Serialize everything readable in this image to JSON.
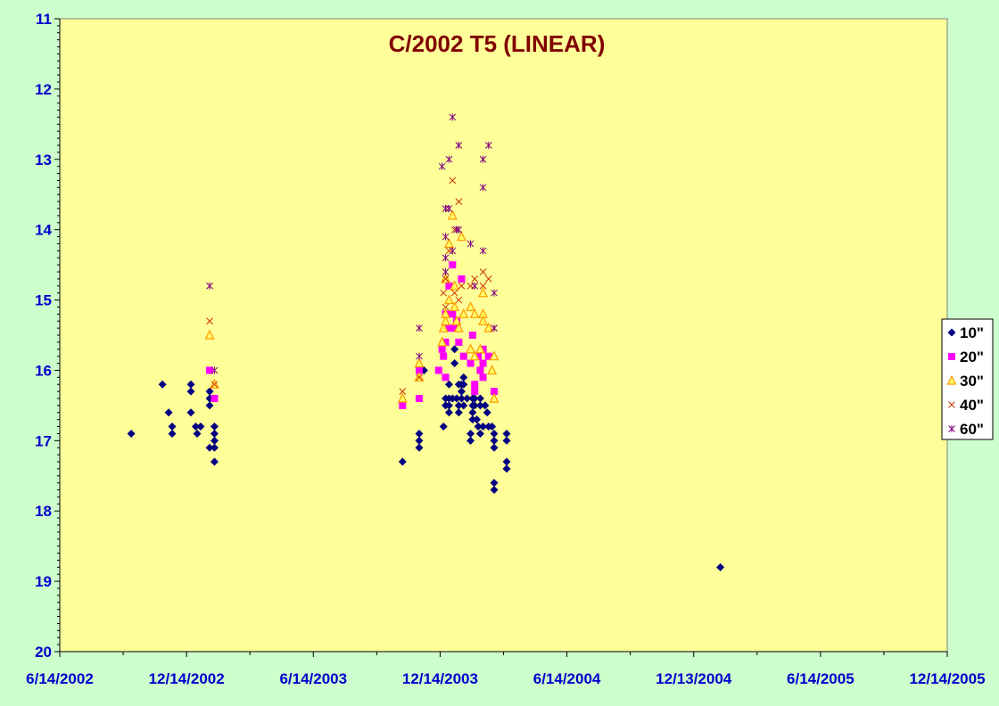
{
  "chart_data": {
    "type": "scatter",
    "title": "C/2002 T5 (LINEAR)",
    "xlabel": "",
    "ylabel": "",
    "x_axis": {
      "type": "date",
      "range": [
        "2002-06-14",
        "2005-12-14"
      ],
      "tick_labels": [
        "6/14/2002",
        "12/14/2002",
        "6/14/2003",
        "12/14/2003",
        "6/14/2004",
        "12/13/2004",
        "6/14/2005",
        "12/14/2005"
      ]
    },
    "y_axis": {
      "reversed": true,
      "range": [
        11,
        20
      ],
      "tick_labels": [
        "11",
        "12",
        "13",
        "14",
        "15",
        "16",
        "17",
        "18",
        "19",
        "20"
      ]
    },
    "grid": false,
    "legend_position": "right",
    "colors": {
      "plot_bg": "#ffff99",
      "page_bg": "#ccffcc",
      "title": "#800000",
      "ticks": "#0000cc"
    },
    "series": [
      {
        "name": "10\"",
        "marker": "diamond",
        "color": "#000080",
        "points": [
          [
            "2002-09-25",
            16.9
          ],
          [
            "2002-11-09",
            16.2
          ],
          [
            "2002-11-18",
            16.6
          ],
          [
            "2002-11-23",
            16.8
          ],
          [
            "2002-11-23",
            16.9
          ],
          [
            "2002-12-20",
            16.2
          ],
          [
            "2002-12-20",
            16.3
          ],
          [
            "2002-12-20",
            16.6
          ],
          [
            "2002-12-27",
            16.8
          ],
          [
            "2002-12-29",
            16.9
          ],
          [
            "2003-01-03",
            16.8
          ],
          [
            "2003-01-16",
            16.3
          ],
          [
            "2003-01-16",
            16.4
          ],
          [
            "2003-01-16",
            16.5
          ],
          [
            "2003-01-16",
            17.1
          ],
          [
            "2003-01-23",
            16.8
          ],
          [
            "2003-01-23",
            16.9
          ],
          [
            "2003-01-23",
            17.0
          ],
          [
            "2003-01-23",
            17.1
          ],
          [
            "2003-01-23",
            17.3
          ],
          [
            "2003-10-21",
            17.3
          ],
          [
            "2003-11-14",
            16.9
          ],
          [
            "2003-11-14",
            17.0
          ],
          [
            "2003-11-14",
            17.1
          ],
          [
            "2003-11-21",
            16.0
          ],
          [
            "2003-12-19",
            16.8
          ],
          [
            "2003-12-22",
            16.4
          ],
          [
            "2003-12-22",
            16.5
          ],
          [
            "2003-12-27",
            16.2
          ],
          [
            "2003-12-27",
            16.4
          ],
          [
            "2003-12-27",
            16.5
          ],
          [
            "2003-12-27",
            16.6
          ],
          [
            "2004-01-01",
            16.4
          ],
          [
            "2004-01-04",
            15.7
          ],
          [
            "2004-01-04",
            15.9
          ],
          [
            "2004-01-07",
            16.4
          ],
          [
            "2004-01-10",
            16.2
          ],
          [
            "2004-01-10",
            16.5
          ],
          [
            "2004-01-10",
            16.6
          ],
          [
            "2004-01-14",
            16.2
          ],
          [
            "2004-01-14",
            16.3
          ],
          [
            "2004-01-14",
            16.4
          ],
          [
            "2004-01-17",
            16.1
          ],
          [
            "2004-01-17",
            16.2
          ],
          [
            "2004-01-17",
            16.5
          ],
          [
            "2004-01-22",
            16.4
          ],
          [
            "2004-01-27",
            16.9
          ],
          [
            "2004-01-27",
            17.0
          ],
          [
            "2004-01-30",
            16.4
          ],
          [
            "2004-01-30",
            16.5
          ],
          [
            "2004-01-30",
            16.6
          ],
          [
            "2004-01-30",
            16.7
          ],
          [
            "2004-02-02",
            16.4
          ],
          [
            "2004-02-02",
            16.5
          ],
          [
            "2004-02-05",
            16.7
          ],
          [
            "2004-02-07",
            16.8
          ],
          [
            "2004-02-10",
            16.4
          ],
          [
            "2004-02-10",
            16.5
          ],
          [
            "2004-02-10",
            16.9
          ],
          [
            "2004-02-14",
            16.8
          ],
          [
            "2004-02-17",
            16.5
          ],
          [
            "2004-02-20",
            16.6
          ],
          [
            "2004-02-22",
            16.8
          ],
          [
            "2004-02-27",
            16.8
          ],
          [
            "2004-03-01",
            16.9
          ],
          [
            "2004-03-01",
            17.0
          ],
          [
            "2004-03-01",
            17.1
          ],
          [
            "2004-03-01",
            17.6
          ],
          [
            "2004-03-01",
            17.7
          ],
          [
            "2004-03-19",
            16.9
          ],
          [
            "2004-03-19",
            17.0
          ],
          [
            "2004-03-19",
            17.3
          ],
          [
            "2004-03-19",
            17.4
          ],
          [
            "2005-01-21",
            18.8
          ]
        ]
      },
      {
        "name": "20\"",
        "marker": "square",
        "color": "#ff00ff",
        "points": [
          [
            "2003-01-16",
            16.0
          ],
          [
            "2003-01-23",
            16.4
          ],
          [
            "2003-10-21",
            16.5
          ],
          [
            "2003-11-14",
            16.0
          ],
          [
            "2003-11-14",
            16.4
          ],
          [
            "2003-12-12",
            16.0
          ],
          [
            "2003-12-17",
            15.7
          ],
          [
            "2003-12-19",
            15.8
          ],
          [
            "2003-12-22",
            15.2
          ],
          [
            "2003-12-22",
            15.6
          ],
          [
            "2003-12-22",
            16.1
          ],
          [
            "2003-12-27",
            14.8
          ],
          [
            "2003-12-27",
            15.4
          ],
          [
            "2004-01-01",
            14.5
          ],
          [
            "2004-01-01",
            15.2
          ],
          [
            "2004-01-04",
            15.4
          ],
          [
            "2004-01-07",
            15.3
          ],
          [
            "2004-01-10",
            15.6
          ],
          [
            "2004-01-14",
            14.7
          ],
          [
            "2004-01-17",
            15.8
          ],
          [
            "2004-01-27",
            15.9
          ],
          [
            "2004-01-30",
            15.5
          ],
          [
            "2004-02-02",
            16.2
          ],
          [
            "2004-02-02",
            16.3
          ],
          [
            "2004-02-07",
            15.8
          ],
          [
            "2004-02-10",
            16.0
          ],
          [
            "2004-02-14",
            15.7
          ],
          [
            "2004-02-14",
            15.9
          ],
          [
            "2004-02-14",
            16.1
          ],
          [
            "2004-02-22",
            15.8
          ],
          [
            "2004-03-01",
            16.3
          ]
        ]
      },
      {
        "name": "30\"",
        "marker": "triangle",
        "color": "#ff9900",
        "points": [
          [
            "2003-01-16",
            15.5
          ],
          [
            "2003-01-23",
            16.2
          ],
          [
            "2003-10-21",
            16.4
          ],
          [
            "2003-11-14",
            15.9
          ],
          [
            "2003-11-14",
            16.1
          ],
          [
            "2003-12-17",
            15.6
          ],
          [
            "2003-12-19",
            15.4
          ],
          [
            "2003-12-22",
            15.2
          ],
          [
            "2003-12-22",
            15.3
          ],
          [
            "2003-12-22",
            14.7
          ],
          [
            "2003-12-27",
            14.2
          ],
          [
            "2003-12-27",
            15.0
          ],
          [
            "2004-01-01",
            13.8
          ],
          [
            "2004-01-04",
            14.8
          ],
          [
            "2004-01-04",
            15.1
          ],
          [
            "2004-01-07",
            15.3
          ],
          [
            "2004-01-10",
            15.4
          ],
          [
            "2004-01-14",
            14.1
          ],
          [
            "2004-01-17",
            15.2
          ],
          [
            "2004-01-27",
            15.1
          ],
          [
            "2004-01-27",
            15.7
          ],
          [
            "2004-02-02",
            15.2
          ],
          [
            "2004-02-02",
            15.8
          ],
          [
            "2004-02-10",
            15.7
          ],
          [
            "2004-02-14",
            14.9
          ],
          [
            "2004-02-14",
            15.2
          ],
          [
            "2004-02-14",
            15.3
          ],
          [
            "2004-02-22",
            15.4
          ],
          [
            "2004-02-27",
            16.0
          ],
          [
            "2004-03-01",
            15.8
          ],
          [
            "2004-03-01",
            16.4
          ]
        ]
      },
      {
        "name": "40\"",
        "marker": "x",
        "color": "#cc3300",
        "points": [
          [
            "2003-01-16",
            15.3
          ],
          [
            "2003-01-23",
            16.2
          ],
          [
            "2003-10-21",
            16.3
          ],
          [
            "2003-11-14",
            16.1
          ],
          [
            "2003-12-19",
            14.9
          ],
          [
            "2003-12-22",
            15.1
          ],
          [
            "2003-12-22",
            14.7
          ],
          [
            "2003-12-27",
            14.3
          ],
          [
            "2004-01-01",
            13.3
          ],
          [
            "2004-01-04",
            14.0
          ],
          [
            "2004-01-04",
            14.9
          ],
          [
            "2004-01-10",
            13.6
          ],
          [
            "2004-01-10",
            15.0
          ],
          [
            "2004-01-14",
            14.8
          ],
          [
            "2004-01-27",
            14.8
          ],
          [
            "2004-02-02",
            14.7
          ],
          [
            "2004-02-14",
            14.6
          ],
          [
            "2004-02-14",
            14.8
          ],
          [
            "2004-02-22",
            14.7
          ],
          [
            "2004-03-01",
            15.4
          ]
        ]
      },
      {
        "name": "60\"",
        "marker": "star",
        "color": "#800080",
        "points": [
          [
            "2003-01-16",
            14.8
          ],
          [
            "2003-01-23",
            16.0
          ],
          [
            "2003-11-14",
            15.4
          ],
          [
            "2003-11-14",
            15.8
          ],
          [
            "2003-12-17",
            13.1
          ],
          [
            "2003-12-22",
            13.7
          ],
          [
            "2003-12-22",
            14.1
          ],
          [
            "2003-12-22",
            14.4
          ],
          [
            "2003-12-22",
            14.6
          ],
          [
            "2003-12-27",
            13.0
          ],
          [
            "2003-12-27",
            13.7
          ],
          [
            "2004-01-01",
            12.4
          ],
          [
            "2004-01-01",
            14.3
          ],
          [
            "2004-01-07",
            14.0
          ],
          [
            "2004-01-10",
            12.8
          ],
          [
            "2004-01-10",
            14.0
          ],
          [
            "2004-01-27",
            14.2
          ],
          [
            "2004-02-02",
            14.8
          ],
          [
            "2004-02-14",
            13.0
          ],
          [
            "2004-02-14",
            13.4
          ],
          [
            "2004-02-14",
            14.3
          ],
          [
            "2004-02-22",
            12.8
          ],
          [
            "2004-03-01",
            14.9
          ],
          [
            "2004-03-01",
            15.4
          ]
        ]
      }
    ]
  }
}
